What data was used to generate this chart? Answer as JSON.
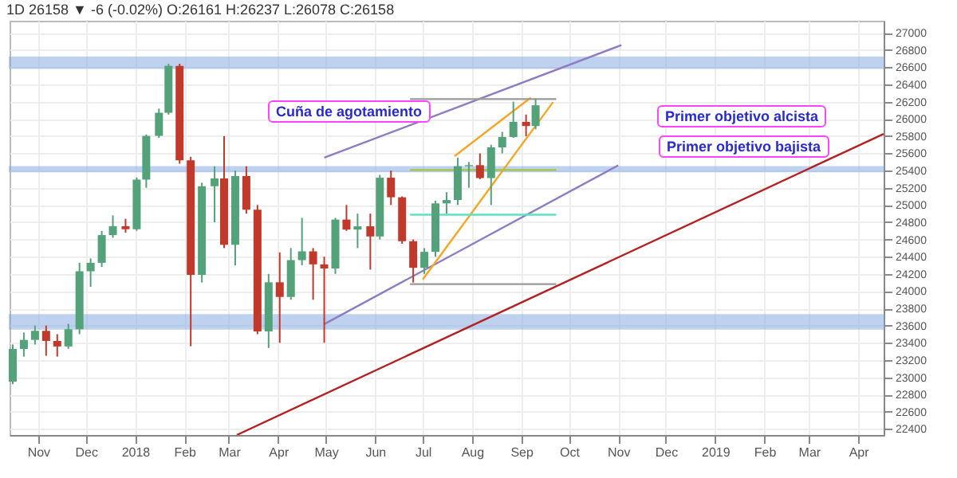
{
  "chart_data": {
    "type": "candlestick",
    "subtitle": "1D 26158 ▼ -6 (-0.02%) O:26161 H:26237 L:26078 C:26158",
    "annotations": [
      "Cuña de agotamiento",
      "Primer objetivo alcista",
      "Primer objetivo bajista"
    ],
    "x": [
      "2017-10-16",
      "2017-10-23",
      "2017-10-30",
      "2017-11-06",
      "2017-11-13",
      "2017-11-20",
      "2017-11-27",
      "2017-12-04",
      "2017-12-11",
      "2017-12-18",
      "2017-12-26",
      "2018-01-02",
      "2018-01-08",
      "2018-01-16",
      "2018-01-22",
      "2018-01-29",
      "2018-02-05",
      "2018-02-12",
      "2018-02-20",
      "2018-02-26",
      "2018-03-05",
      "2018-03-12",
      "2018-03-19",
      "2018-03-26",
      "2018-04-02",
      "2018-04-09",
      "2018-04-16",
      "2018-04-23",
      "2018-04-30",
      "2018-05-07",
      "2018-05-14",
      "2018-05-21",
      "2018-05-29",
      "2018-06-04",
      "2018-06-11",
      "2018-06-18",
      "2018-06-25",
      "2018-07-02",
      "2018-07-09",
      "2018-07-16",
      "2018-07-23",
      "2018-07-30",
      "2018-08-06",
      "2018-08-13",
      "2018-08-20",
      "2018-08-27",
      "2018-09-04",
      "2018-09-10"
    ],
    "ohlc": [
      [
        22950,
        23380,
        22920,
        23329
      ],
      [
        23329,
        23520,
        23240,
        23434
      ],
      [
        23434,
        23600,
        23380,
        23539
      ],
      [
        23539,
        23600,
        23250,
        23422
      ],
      [
        23422,
        23500,
        23240,
        23358
      ],
      [
        23358,
        23620,
        23330,
        23558
      ],
      [
        23558,
        24330,
        23500,
        24231
      ],
      [
        24231,
        24380,
        24050,
        24329
      ],
      [
        24329,
        24700,
        24280,
        24651
      ],
      [
        24651,
        24880,
        24620,
        24754
      ],
      [
        24754,
        24840,
        24680,
        24719
      ],
      [
        24719,
        25320,
        24700,
        25295
      ],
      [
        25295,
        25820,
        25200,
        25803
      ],
      [
        25803,
        26120,
        25780,
        26071
      ],
      [
        26071,
        26640,
        26050,
        26616
      ],
      [
        26616,
        26640,
        25480,
        25520
      ],
      [
        25520,
        25560,
        23360,
        24190
      ],
      [
        24190,
        25260,
        24100,
        25219
      ],
      [
        25219,
        25450,
        24800,
        25309
      ],
      [
        25309,
        25800,
        24500,
        24538
      ],
      [
        24538,
        25400,
        24300,
        25336
      ],
      [
        25336,
        25450,
        24900,
        24946
      ],
      [
        24946,
        25000,
        23500,
        23533
      ],
      [
        23533,
        24200,
        23340,
        24103
      ],
      [
        24103,
        24450,
        23400,
        23933
      ],
      [
        23933,
        24500,
        23900,
        24360
      ],
      [
        24360,
        24850,
        24300,
        24462
      ],
      [
        24462,
        24500,
        23900,
        24311
      ],
      [
        24311,
        24400,
        23400,
        24263
      ],
      [
        24263,
        24850,
        24200,
        24831
      ],
      [
        24831,
        25000,
        24700,
        24715
      ],
      [
        24715,
        24900,
        24500,
        24753
      ],
      [
        24753,
        24900,
        24250,
        24635
      ],
      [
        24635,
        25350,
        24600,
        25317
      ],
      [
        25317,
        25400,
        25000,
        25090
      ],
      [
        25090,
        25100,
        24550,
        24580
      ],
      [
        24580,
        24600,
        24100,
        24271
      ],
      [
        24271,
        24500,
        24200,
        24456
      ],
      [
        24456,
        25050,
        24400,
        25019
      ],
      [
        25019,
        25150,
        24900,
        25058
      ],
      [
        25058,
        25550,
        25000,
        25451
      ],
      [
        25451,
        25500,
        25200,
        25463
      ],
      [
        25463,
        25600,
        25300,
        25313
      ],
      [
        25313,
        25700,
        25000,
        25669
      ],
      [
        25669,
        25850,
        25600,
        25790
      ],
      [
        25790,
        26200,
        25780,
        25965
      ],
      [
        25965,
        26050,
        25800,
        25917
      ],
      [
        25917,
        26237,
        25880,
        26158
      ]
    ],
    "colors": [
      "#53a27a",
      "#53a27a",
      "#53a27a",
      "#c0392b",
      "#c0392b",
      "#53a27a",
      "#53a27a",
      "#53a27a",
      "#53a27a",
      "#53a27a",
      "#c0392b",
      "#53a27a",
      "#53a27a",
      "#53a27a",
      "#53a27a",
      "#c0392b",
      "#c0392b",
      "#53a27a",
      "#53a27a",
      "#c0392b",
      "#53a27a",
      "#c0392b",
      "#c0392b",
      "#53a27a",
      "#c0392b",
      "#53a27a",
      "#53a27a",
      "#c0392b",
      "#c0392b",
      "#53a27a",
      "#c0392b",
      "#53a27a",
      "#c0392b",
      "#53a27a",
      "#c0392b",
      "#c0392b",
      "#c0392b",
      "#53a27a",
      "#53a27a",
      "#53a27a",
      "#53a27a",
      "#53a27a",
      "#c0392b",
      "#53a27a",
      "#53a27a",
      "#53a27a",
      "#c0392b",
      "#53a27a"
    ],
    "series": [
      {
        "type": "line",
        "color": "#8e7cc3",
        "x": [
          "2018-04-30",
          "2018-11-03"
        ],
        "values": [
          25550,
          26857
        ]
      },
      {
        "type": "line",
        "color": "#8e7cc3",
        "x": [
          "2018-04-30",
          "2018-11-01"
        ],
        "values": [
          23617,
          25461
        ]
      },
      {
        "type": "line",
        "color": "#b22222",
        "x": [
          "2018-03-06",
          "2019-04-17"
        ],
        "values": [
          22330,
          25826
        ]
      },
      {
        "type": "line",
        "color": "#f5a623",
        "x": [
          "2018-07-21",
          "2018-09-07"
        ],
        "values": [
          25568,
          26248
        ]
      },
      {
        "type": "line",
        "color": "#f5a623",
        "x": [
          "2018-07-01",
          "2018-09-21"
        ],
        "values": [
          24136,
          26195
        ]
      },
      {
        "type": "line",
        "color": "#999999",
        "x": [
          "2018-06-23",
          "2018-09-23"
        ],
        "values": [
          26230,
          26230
        ]
      },
      {
        "type": "line",
        "color": "#a4c639",
        "x": [
          "2018-06-23",
          "2018-09-23"
        ],
        "values": [
          25407,
          25407
        ]
      },
      {
        "type": "line",
        "color": "#5fe0c0",
        "x": [
          "2018-06-23",
          "2018-09-23"
        ],
        "values": [
          24888,
          24888
        ]
      },
      {
        "type": "line",
        "color": "#999999",
        "x": [
          "2018-06-23",
          "2018-09-23"
        ],
        "values": [
          24082,
          24082
        ]
      }
    ],
    "bands": [
      {
        "axis": "y",
        "from": 26589,
        "to": 26714,
        "color": "#7fa6e0"
      },
      {
        "axis": "y",
        "from": 23563,
        "to": 23724,
        "color": "#7fa6e0"
      },
      {
        "axis": "y",
        "from": 25389,
        "to": 25443,
        "color": "#7fa6e0"
      }
    ],
    "xlim": [
      "2017-10-14",
      "2019-04-17"
    ],
    "xticks": [
      {
        "value": "2017-11-01",
        "label": "Nov"
      },
      {
        "value": "2017-12-01",
        "label": "Dec"
      },
      {
        "value": "2018-01-01",
        "label": "2018"
      },
      {
        "value": "2018-02-01",
        "label": "Feb"
      },
      {
        "value": "2018-03-01",
        "label": "Mar"
      },
      {
        "value": "2018-04-01",
        "label": "Apr"
      },
      {
        "value": "2018-05-01",
        "label": "May"
      },
      {
        "value": "2018-06-01",
        "label": "Jun"
      },
      {
        "value": "2018-07-01",
        "label": "Jul"
      },
      {
        "value": "2018-08-01",
        "label": "Aug"
      },
      {
        "value": "2018-09-01",
        "label": "Sep"
      },
      {
        "value": "2018-10-01",
        "label": "Oct"
      },
      {
        "value": "2018-11-01",
        "label": "Nov"
      },
      {
        "value": "2018-12-01",
        "label": "Dec"
      },
      {
        "value": "2019-01-01",
        "label": "2019"
      },
      {
        "value": "2019-02-01",
        "label": "Feb"
      },
      {
        "value": "2019-03-01",
        "label": "Mar"
      },
      {
        "value": "2019-04-01",
        "label": "Apr"
      }
    ],
    "ylim": [
      22330,
      27140
    ],
    "yticks": [
      22400,
      22600,
      22800,
      23000,
      23200,
      23400,
      23600,
      23800,
      24000,
      24200,
      24400,
      24600,
      24800,
      25000,
      25200,
      25400,
      25600,
      25800,
      26000,
      26200,
      26400,
      26600,
      26800,
      27000
    ],
    "grid": true
  }
}
